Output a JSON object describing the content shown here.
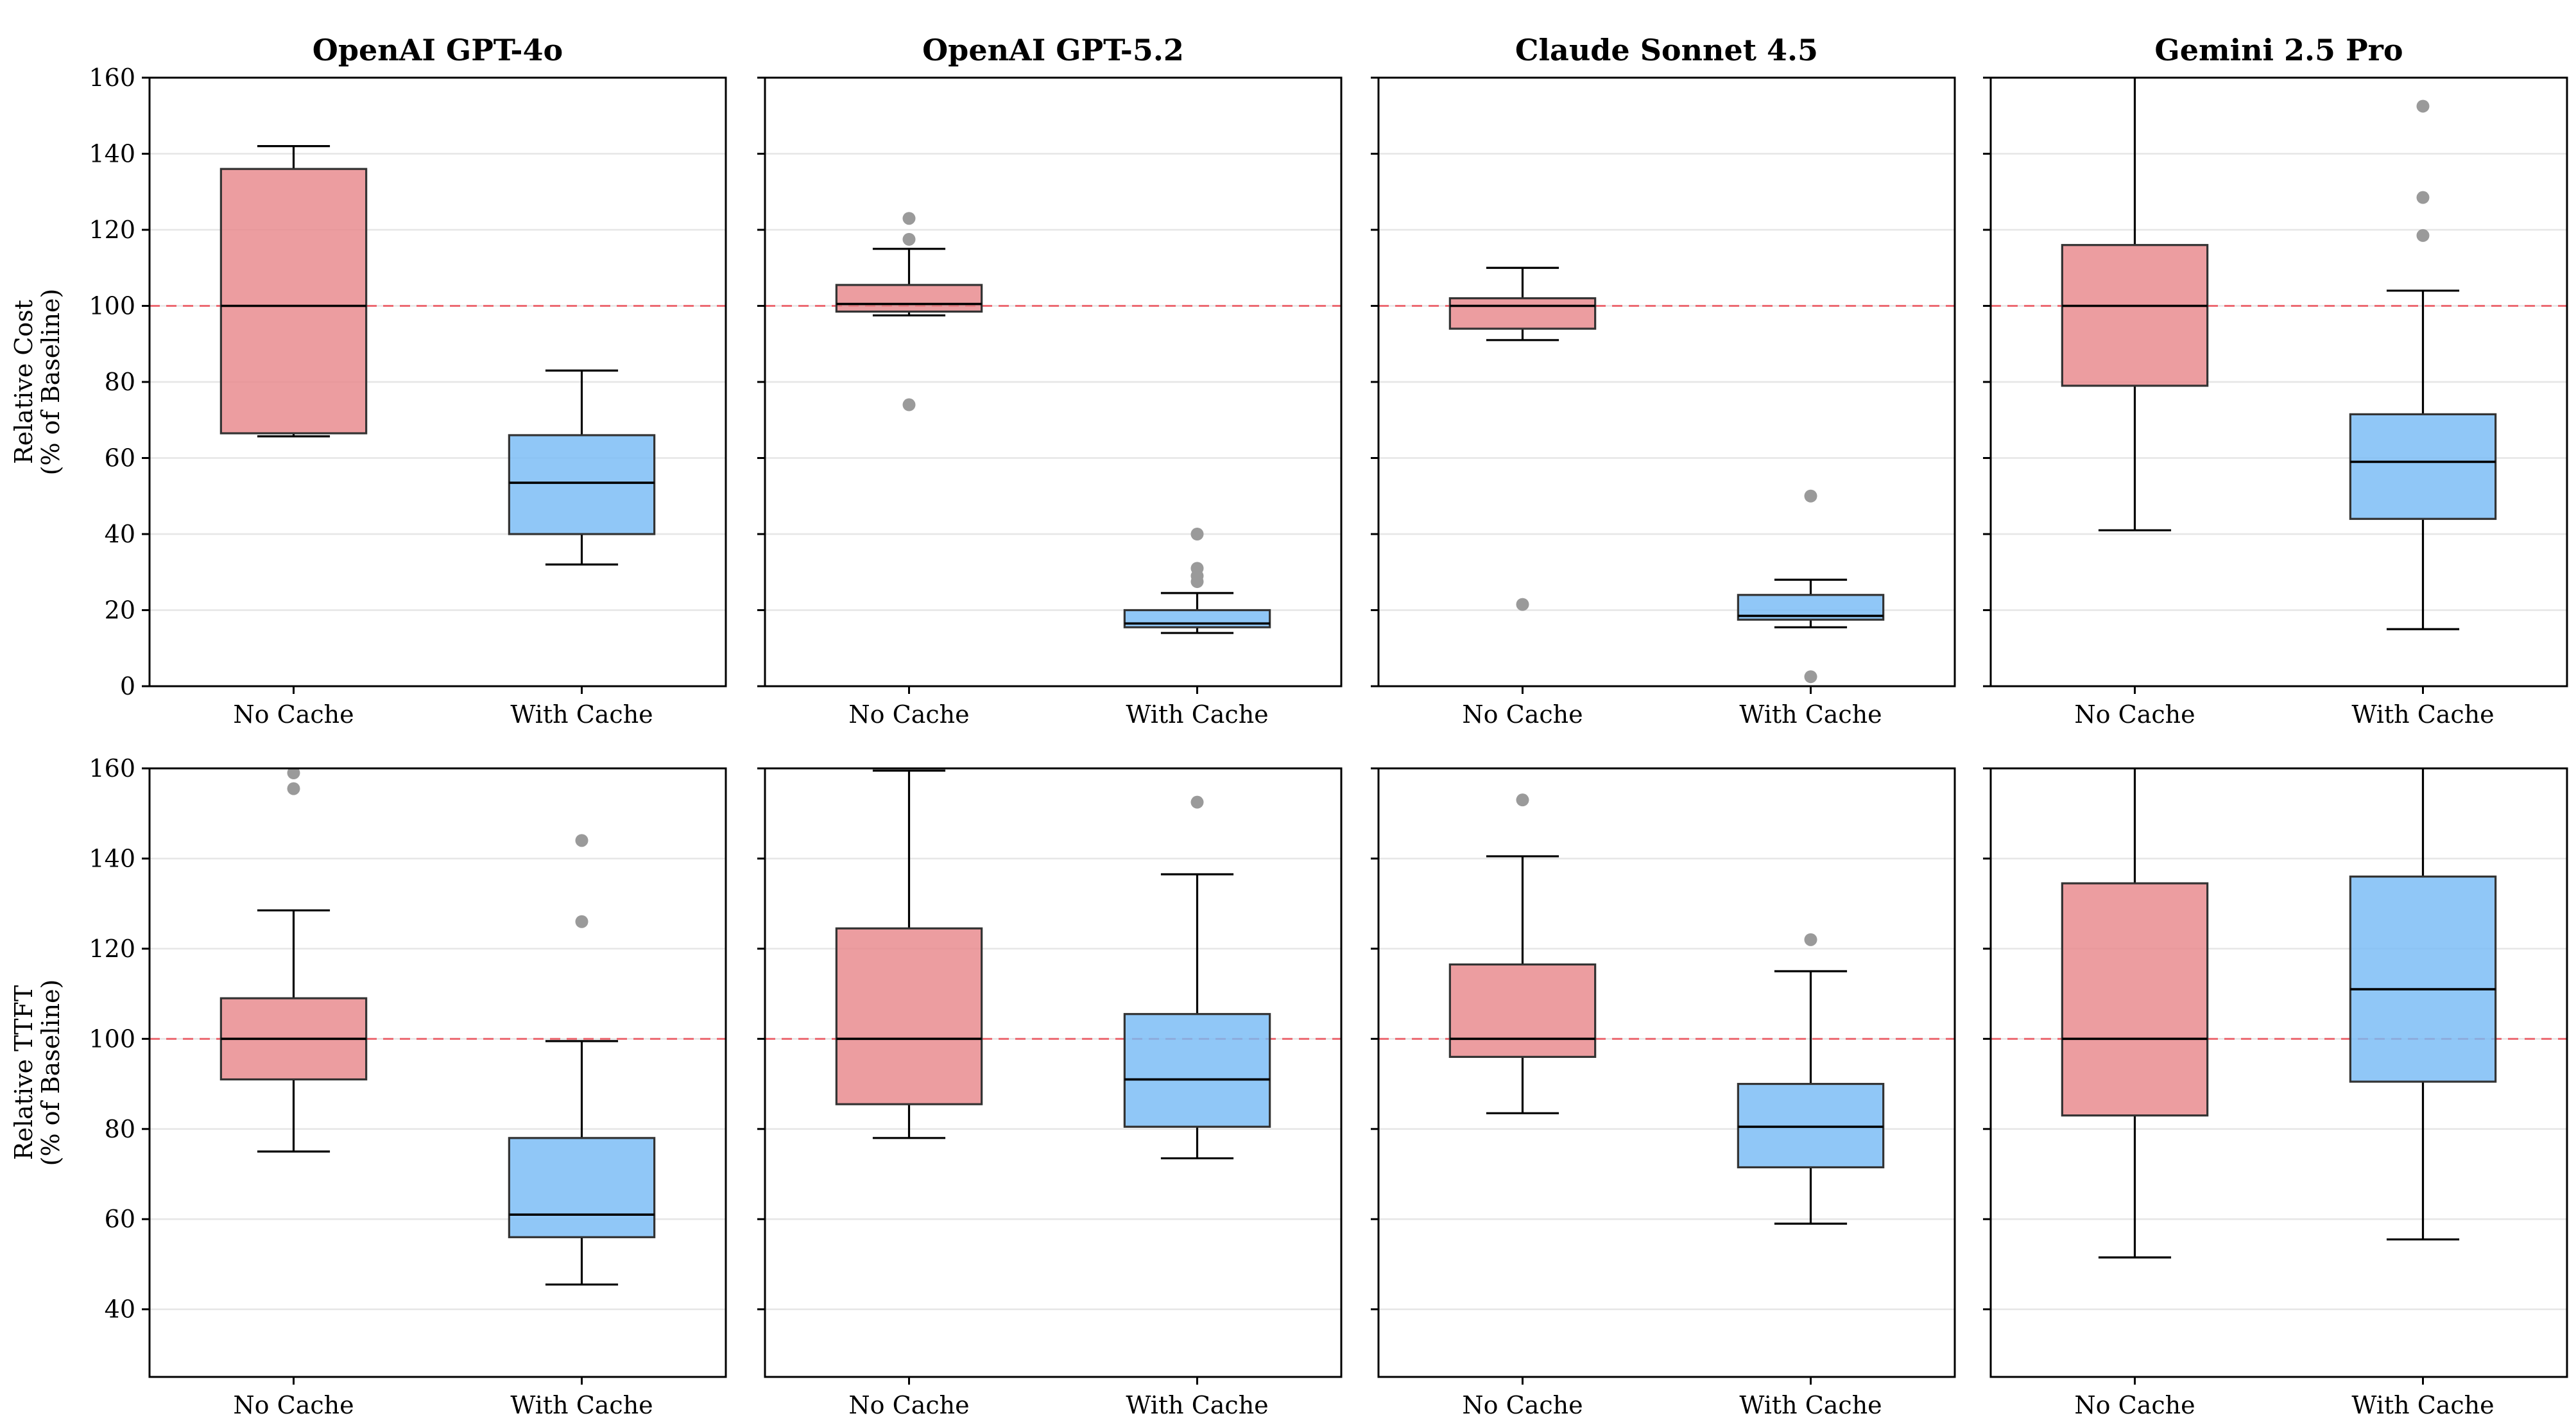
{
  "colors": {
    "no_cache": "#e8888b",
    "with_cache": "#77bbf5",
    "baseline": "#ec6a72",
    "outlier": "#9a9a9a"
  },
  "chart_data": [
    {
      "type": "box",
      "title": "OpenAI GPT-4o",
      "ylabel": "Relative Cost\n(% of Baseline)",
      "ylim": [
        0,
        160
      ],
      "yticks": [
        0,
        20,
        40,
        60,
        80,
        100,
        120,
        140,
        160
      ],
      "baseline": 100,
      "grid": true,
      "categories": [
        "No Cache",
        "With Cache"
      ],
      "boxes": [
        {
          "whisker_low": 65.7,
          "q1": 66.5,
          "median": 100,
          "q3": 136,
          "whisker_high": 142,
          "outliers": []
        },
        {
          "whisker_low": 32,
          "q1": 40,
          "median": 53.5,
          "q3": 66,
          "whisker_high": 83,
          "outliers": []
        }
      ]
    },
    {
      "type": "box",
      "title": "OpenAI GPT-5.2",
      "ylim": [
        0,
        160
      ],
      "yticks": [
        0,
        20,
        40,
        60,
        80,
        100,
        120,
        140,
        160
      ],
      "baseline": 100,
      "grid": true,
      "categories": [
        "No Cache",
        "With Cache"
      ],
      "boxes": [
        {
          "whisker_low": 97.5,
          "q1": 98.5,
          "median": 100.5,
          "q3": 105.5,
          "whisker_high": 115,
          "outliers": [
            123,
            117.5,
            74
          ]
        },
        {
          "whisker_low": 14,
          "q1": 15.5,
          "median": 16.5,
          "q3": 20,
          "whisker_high": 24.5,
          "outliers": [
            40,
            31,
            29,
            27.5
          ]
        }
      ]
    },
    {
      "type": "box",
      "title": "Claude Sonnet 4.5",
      "ylim": [
        0,
        160
      ],
      "yticks": [
        0,
        20,
        40,
        60,
        80,
        100,
        120,
        140,
        160
      ],
      "baseline": 100,
      "grid": true,
      "categories": [
        "No Cache",
        "With Cache"
      ],
      "boxes": [
        {
          "whisker_low": 91,
          "q1": 94,
          "median": 100,
          "q3": 102,
          "whisker_high": 110,
          "outliers": [
            21.5
          ]
        },
        {
          "whisker_low": 15.5,
          "q1": 17.5,
          "median": 18.5,
          "q3": 24,
          "whisker_high": 28,
          "outliers": [
            50,
            2.5
          ]
        }
      ]
    },
    {
      "type": "box",
      "title": "Gemini 2.5 Pro",
      "ylim": [
        0,
        160
      ],
      "yticks": [
        0,
        20,
        40,
        60,
        80,
        100,
        120,
        140,
        160
      ],
      "baseline": 100,
      "grid": true,
      "categories": [
        "No Cache",
        "With Cache"
      ],
      "boxes": [
        {
          "whisker_low": 41,
          "q1": 79,
          "median": 100,
          "q3": 116,
          "whisker_high": 165,
          "outliers": []
        },
        {
          "whisker_low": 15,
          "q1": 44,
          "median": 59,
          "q3": 71.5,
          "whisker_high": 104,
          "outliers": [
            152.5,
            128.5,
            118.5
          ]
        }
      ]
    },
    {
      "type": "box",
      "ylabel": "Relative TTFT\n(% of Baseline)",
      "ylim": [
        25,
        160
      ],
      "yticks": [
        40,
        60,
        80,
        100,
        120,
        140,
        160
      ],
      "baseline": 100,
      "grid": true,
      "categories": [
        "No Cache",
        "With Cache"
      ],
      "boxes": [
        {
          "whisker_low": 75,
          "q1": 91,
          "median": 100,
          "q3": 109,
          "whisker_high": 128.5,
          "outliers": [
            159,
            155.5
          ]
        },
        {
          "whisker_low": 45.5,
          "q1": 56,
          "median": 61,
          "q3": 78,
          "whisker_high": 99.5,
          "outliers": [
            144,
            126
          ]
        }
      ]
    },
    {
      "type": "box",
      "ylim": [
        25,
        160
      ],
      "yticks": [
        40,
        60,
        80,
        100,
        120,
        140,
        160
      ],
      "baseline": 100,
      "grid": true,
      "categories": [
        "No Cache",
        "With Cache"
      ],
      "boxes": [
        {
          "whisker_low": 78,
          "q1": 85.5,
          "median": 100,
          "q3": 124.5,
          "whisker_high": 159.5,
          "outliers": []
        },
        {
          "whisker_low": 73.5,
          "q1": 80.5,
          "median": 91,
          "q3": 105.5,
          "whisker_high": 136.5,
          "outliers": [
            152.5
          ]
        }
      ]
    },
    {
      "type": "box",
      "ylim": [
        25,
        160
      ],
      "yticks": [
        40,
        60,
        80,
        100,
        120,
        140,
        160
      ],
      "baseline": 100,
      "grid": true,
      "categories": [
        "No Cache",
        "With Cache"
      ],
      "boxes": [
        {
          "whisker_low": 83.5,
          "q1": 96,
          "median": 100,
          "q3": 116.5,
          "whisker_high": 140.5,
          "outliers": [
            153
          ]
        },
        {
          "whisker_low": 59,
          "q1": 71.5,
          "median": 80.5,
          "q3": 90,
          "whisker_high": 115,
          "outliers": [
            122
          ]
        }
      ]
    },
    {
      "type": "box",
      "ylim": [
        25,
        160
      ],
      "yticks": [
        40,
        60,
        80,
        100,
        120,
        140,
        160
      ],
      "baseline": 100,
      "grid": true,
      "categories": [
        "No Cache",
        "With Cache"
      ],
      "boxes": [
        {
          "whisker_low": 51.5,
          "q1": 83,
          "median": 100,
          "q3": 134.5,
          "whisker_high": 165,
          "outliers": []
        },
        {
          "whisker_low": 55.5,
          "q1": 90.5,
          "median": 111,
          "q3": 136,
          "whisker_high": 165,
          "outliers": []
        }
      ]
    }
  ]
}
